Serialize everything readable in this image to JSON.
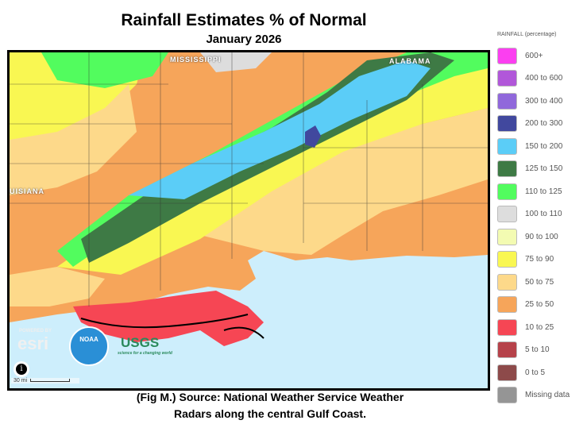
{
  "title": "Rainfall Estimates % of Normal",
  "subtitle": "January 2026",
  "caption_line1": "(Fig M.) Source: National Weather Service Weather",
  "caption_line2": "Radars along the central Gulf Coast.",
  "map": {
    "labels": {
      "mississippi": "MISSISSIPPI",
      "alabama": "ALABAMA",
      "louisiana": "UISIANA"
    },
    "logos": {
      "esri_powered": "POWERED BY",
      "esri": "esri",
      "noaa": "NOAA",
      "usgs": "USGS",
      "usgs_tagline": "science for a changing world"
    },
    "info_icon": "info-icon",
    "scale": "30 mi"
  },
  "legend": {
    "header": "RAINFALL (percentage)",
    "items": [
      {
        "label": "600+",
        "color": "#fb3ff0"
      },
      {
        "label": "400 to 600",
        "color": "#b157d9"
      },
      {
        "label": "300 to 400",
        "color": "#9068db"
      },
      {
        "label": "200 to 300",
        "color": "#41489e"
      },
      {
        "label": "150 to 200",
        "color": "#5bcdf7"
      },
      {
        "label": "125 to 150",
        "color": "#3e7a45"
      },
      {
        "label": "110 to 125",
        "color": "#52fc5e"
      },
      {
        "label": "100 to 110",
        "color": "#dddddd"
      },
      {
        "label": "90 to 100",
        "color": "#f3fbb2"
      },
      {
        "label": "75 to 90",
        "color": "#f9f752"
      },
      {
        "label": "50 to 75",
        "color": "#fdd98a"
      },
      {
        "label": "25 to 50",
        "color": "#f6a55a"
      },
      {
        "label": "10 to 25",
        "color": "#f64654"
      },
      {
        "label": "5 to 10",
        "color": "#b6424a"
      },
      {
        "label": "0 to 5",
        "color": "#8d4a4a"
      },
      {
        "label": "Missing data",
        "color": "#959595"
      }
    ]
  }
}
